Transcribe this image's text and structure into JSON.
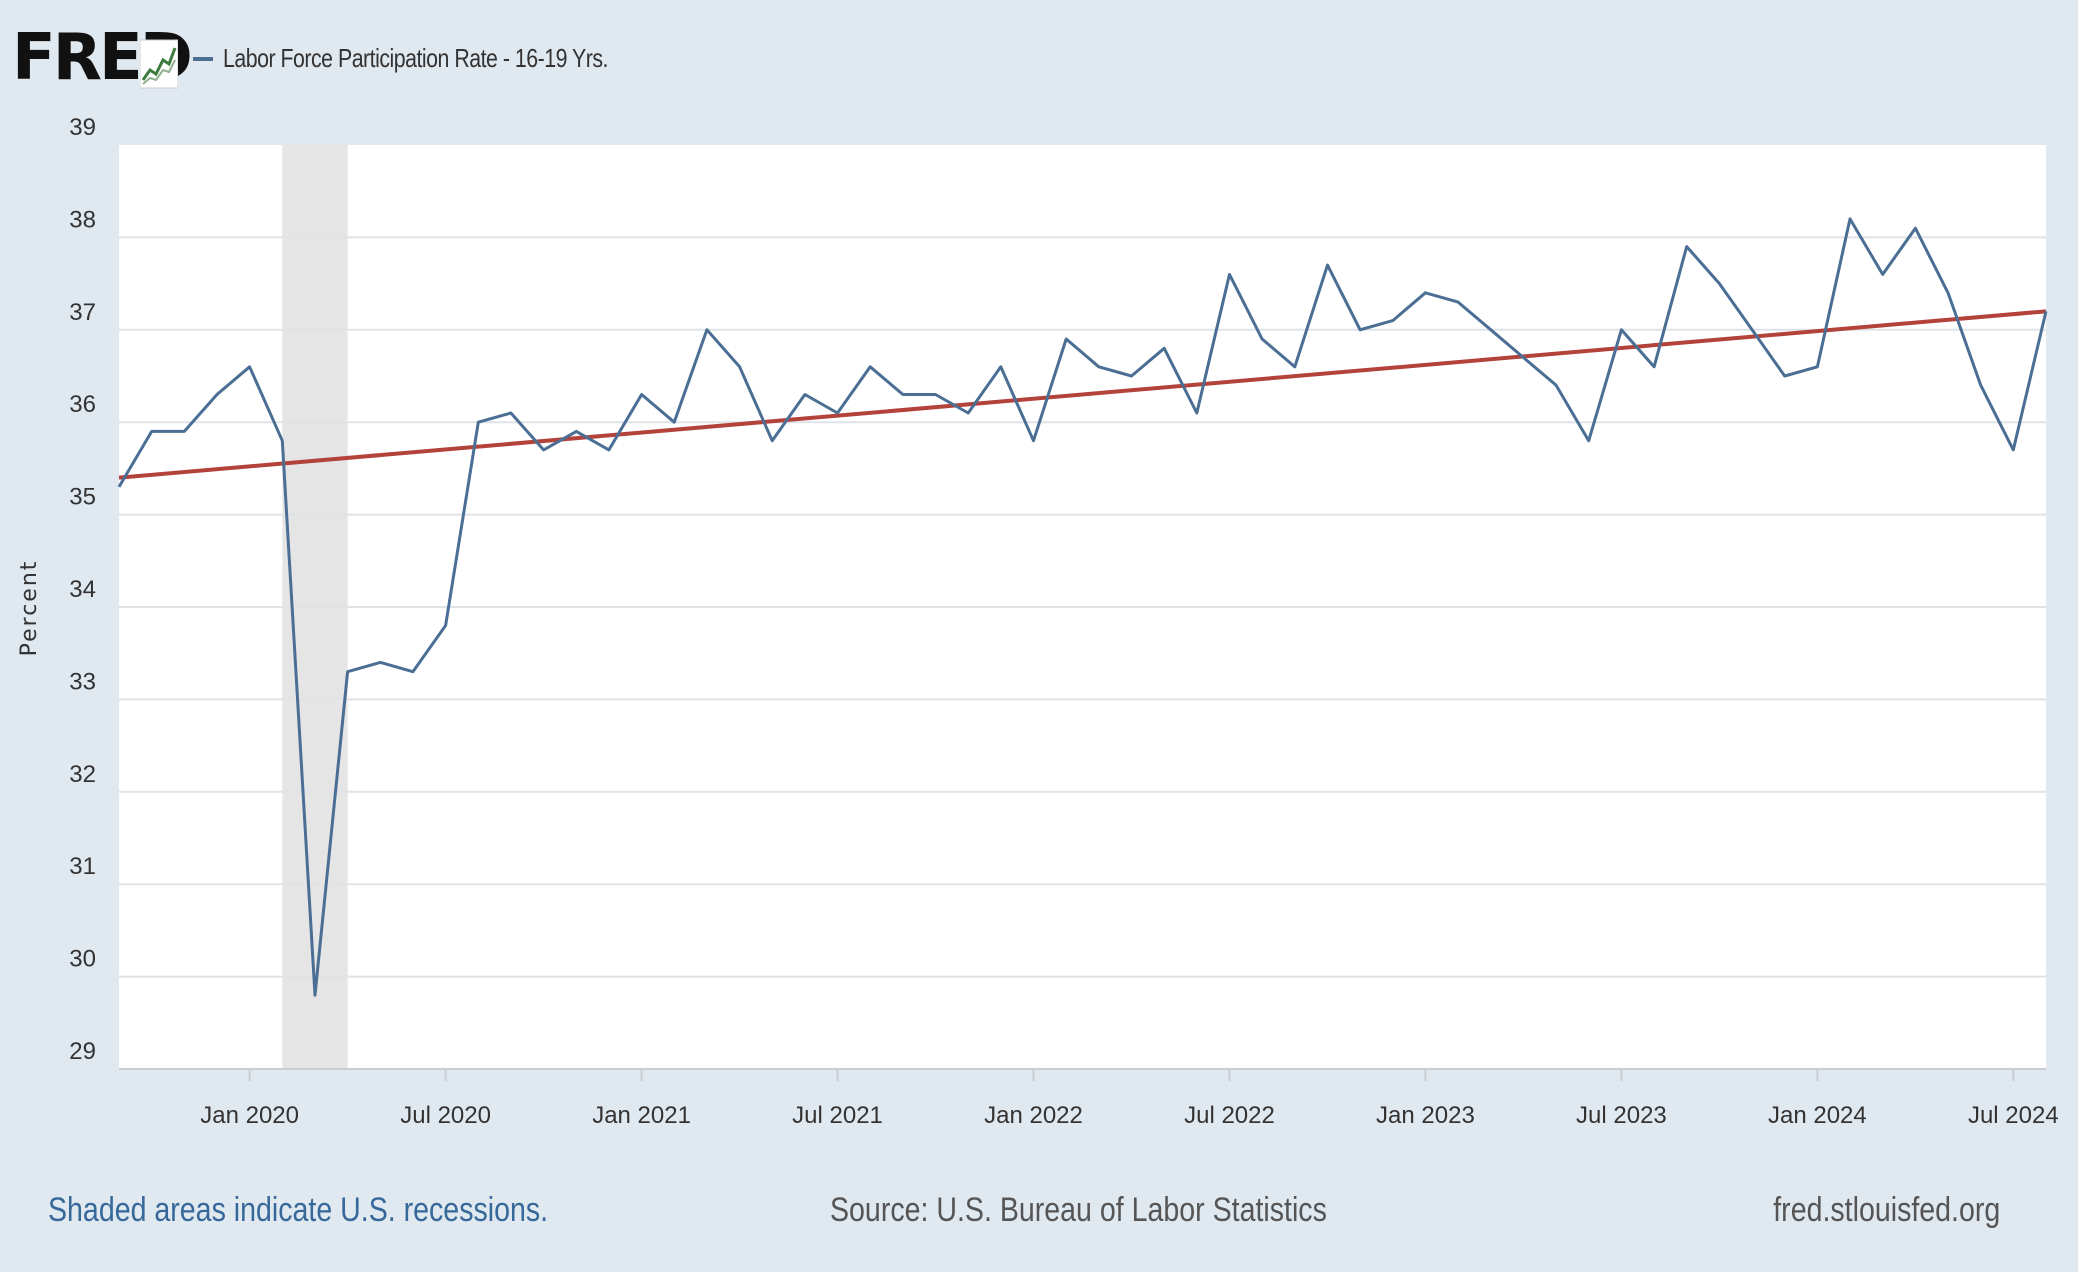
{
  "header": {
    "logo_text": "FRED",
    "logo_icon": "fred-chart-icon",
    "legend_label": "Labor Force Participation Rate - 16-19 Yrs."
  },
  "footer": {
    "recession_note": "Shaded areas indicate U.S. recessions.",
    "source": "Source: U.S. Bureau of Labor Statistics",
    "url": "fred.stlouisfed.org"
  },
  "colors": {
    "series": "#4b6e94",
    "trendline": "#b2423a",
    "recession": "#e5e5e5",
    "page_background": "#e1e9f0",
    "plot_background": "#ffffff",
    "gridline": "#dfe3e8"
  },
  "chart_data": {
    "type": "line",
    "title": "",
    "xlabel": "",
    "ylabel": "Percent",
    "ylim": [
      29,
      39
    ],
    "xlim": [
      "2019-09",
      "2024-08"
    ],
    "grid": true,
    "yticks": [
      29,
      30,
      31,
      32,
      33,
      34,
      35,
      36,
      37,
      38,
      39
    ],
    "xticks": [
      {
        "date": "2020-01",
        "label": "Jan 2020"
      },
      {
        "date": "2020-07",
        "label": "Jul 2020"
      },
      {
        "date": "2021-01",
        "label": "Jan 2021"
      },
      {
        "date": "2021-07",
        "label": "Jul 2021"
      },
      {
        "date": "2022-01",
        "label": "Jan 2022"
      },
      {
        "date": "2022-07",
        "label": "Jul 2022"
      },
      {
        "date": "2023-01",
        "label": "Jan 2023"
      },
      {
        "date": "2023-07",
        "label": "Jul 2023"
      },
      {
        "date": "2024-01",
        "label": "Jan 2024"
      },
      {
        "date": "2024-07",
        "label": "Jul 2024"
      }
    ],
    "recessions": [
      {
        "start": "2020-02",
        "end": "2020-04"
      }
    ],
    "trendline": {
      "start": {
        "x": "2019-09",
        "y": 35.4
      },
      "end": {
        "x": "2024-08",
        "y": 37.2
      }
    },
    "series": [
      {
        "name": "Labor Force Participation Rate - 16-19 Yrs.",
        "x": [
          "2019-09",
          "2019-10",
          "2019-11",
          "2019-12",
          "2020-01",
          "2020-02",
          "2020-03",
          "2020-04",
          "2020-05",
          "2020-06",
          "2020-07",
          "2020-08",
          "2020-09",
          "2020-10",
          "2020-11",
          "2020-12",
          "2021-01",
          "2021-02",
          "2021-03",
          "2021-04",
          "2021-05",
          "2021-06",
          "2021-07",
          "2021-08",
          "2021-09",
          "2021-10",
          "2021-11",
          "2021-12",
          "2022-01",
          "2022-02",
          "2022-03",
          "2022-04",
          "2022-05",
          "2022-06",
          "2022-07",
          "2022-08",
          "2022-09",
          "2022-10",
          "2022-11",
          "2022-12",
          "2023-01",
          "2023-02",
          "2023-03",
          "2023-04",
          "2023-05",
          "2023-06",
          "2023-07",
          "2023-08",
          "2023-09",
          "2023-10",
          "2023-11",
          "2023-12",
          "2024-01",
          "2024-02",
          "2024-03",
          "2024-04",
          "2024-05",
          "2024-06",
          "2024-07",
          "2024-08"
        ],
        "values": [
          35.3,
          35.9,
          35.9,
          36.3,
          36.6,
          35.8,
          29.8,
          33.3,
          33.4,
          33.3,
          33.8,
          36.0,
          36.1,
          35.7,
          35.9,
          35.7,
          36.3,
          36.0,
          37.0,
          36.6,
          35.8,
          36.3,
          36.1,
          36.6,
          36.3,
          36.3,
          36.1,
          36.6,
          35.8,
          36.9,
          36.6,
          36.5,
          36.8,
          36.1,
          37.6,
          36.9,
          36.6,
          37.7,
          37.0,
          37.1,
          37.4,
          37.3,
          37.0,
          36.7,
          36.4,
          35.8,
          37.0,
          36.6,
          37.9,
          37.5,
          37.0,
          36.5,
          36.6,
          38.2,
          37.6,
          38.1,
          37.4,
          36.4,
          35.7,
          37.2
        ]
      }
    ]
  }
}
